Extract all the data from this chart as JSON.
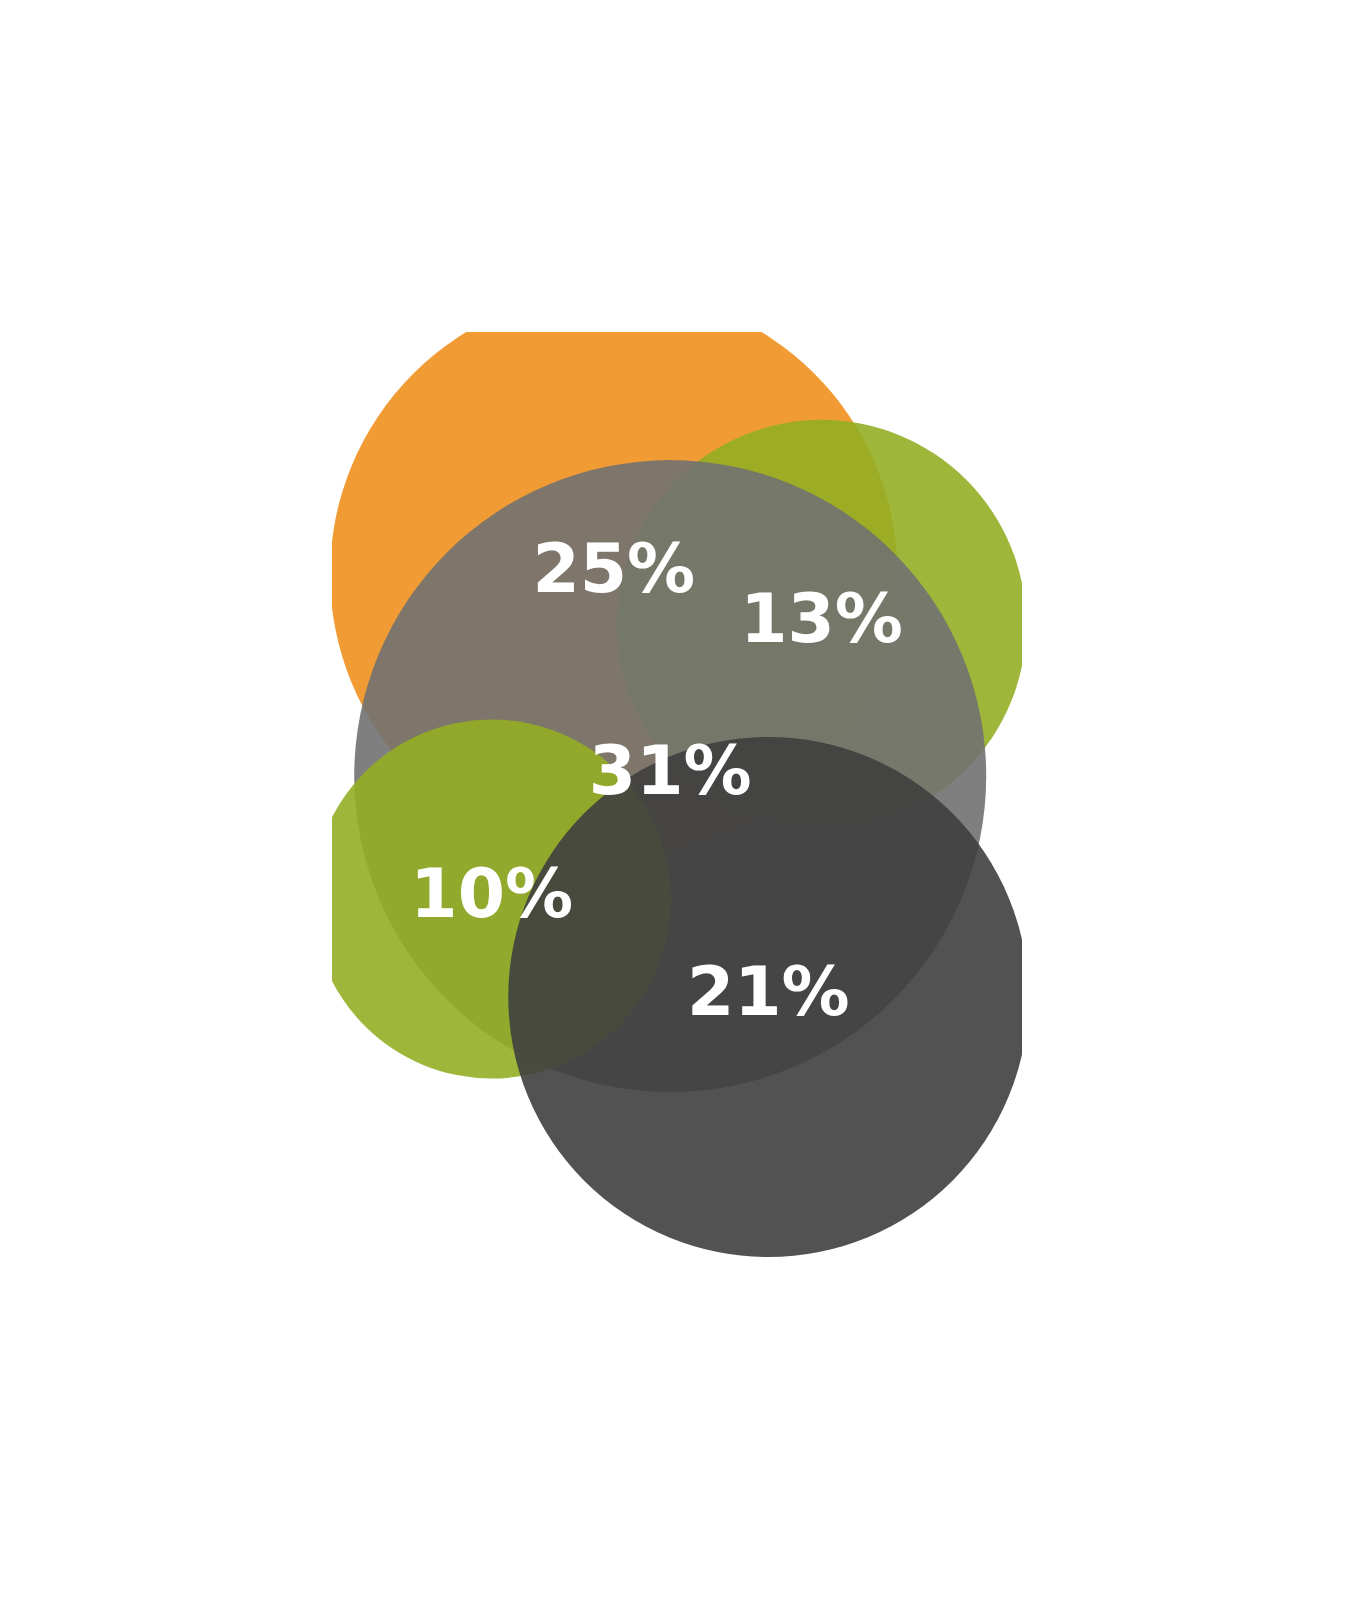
{
  "chart_data": {
    "type": "other",
    "categories": [
      null,
      null,
      null,
      null,
      null
    ],
    "values": [
      25,
      13,
      31,
      10,
      21
    ],
    "value_labels": [
      "25%",
      "13%",
      "31%",
      "10%",
      "21%"
    ],
    "colors": [
      "#f0901e",
      "#94ae24",
      "#717171",
      "#94ae24",
      "#3f3f3f"
    ]
  }
}
